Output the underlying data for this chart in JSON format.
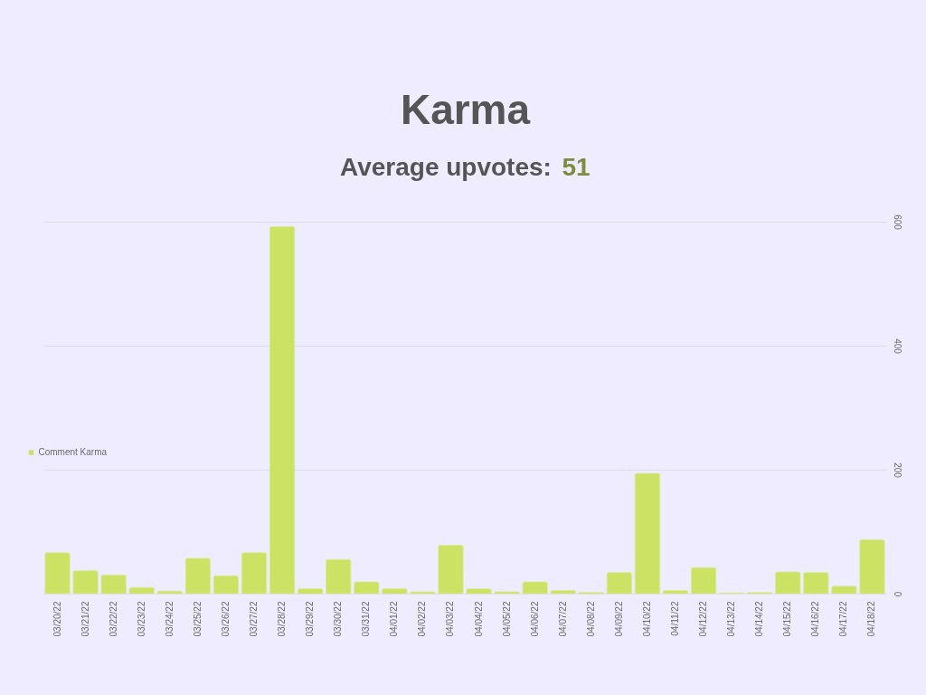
{
  "chart_data": {
    "type": "bar",
    "title": "Karma",
    "subtitle": "Average upvotes: 51",
    "categories": [
      "03/20/22",
      "03/21/22",
      "03/22/22",
      "03/23/22",
      "03/24/22",
      "03/25/22",
      "03/26/22",
      "03/27/22",
      "03/28/22",
      "03/29/22",
      "03/30/22",
      "03/31/22",
      "04/01/22",
      "04/02/22",
      "04/03/22",
      "04/04/22",
      "04/05/22",
      "04/06/22",
      "04/07/22",
      "04/08/22",
      "04/09/22",
      "04/10/22",
      "04/11/22",
      "04/12/22",
      "04/13/22",
      "04/14/22",
      "04/15/22",
      "04/16/22",
      "04/17/22",
      "04/18/22"
    ],
    "series": [
      {
        "name": "Comment Karma",
        "color": "#cbe265",
        "values": [
          66,
          37,
          30,
          10,
          4,
          57,
          29,
          66,
          592,
          8,
          55,
          19,
          8,
          3,
          78,
          8,
          3,
          19,
          5,
          2,
          34,
          194,
          5,
          42,
          1,
          2,
          35,
          34,
          12,
          87
        ]
      }
    ],
    "ylim": [
      0,
      600
    ],
    "yticks": [
      0,
      200,
      400,
      600
    ],
    "grid": "y",
    "legend": "left"
  }
}
